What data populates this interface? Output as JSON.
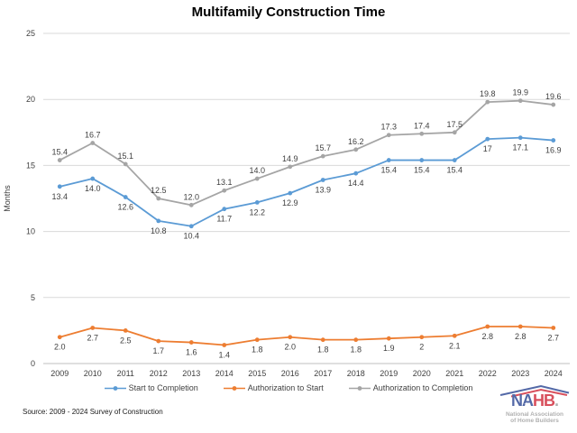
{
  "title": "Multifamily Construction Time",
  "chart_data": {
    "type": "line",
    "title": "Multifamily Construction Time",
    "xlabel": "",
    "ylabel": "Months",
    "ylim": [
      0,
      25
    ],
    "yticks": [
      0,
      5,
      10,
      15,
      20,
      25
    ],
    "grid": true,
    "legend_position": "bottom",
    "categories": [
      "2009",
      "2010",
      "2011",
      "2012",
      "2013",
      "2014",
      "2015",
      "2016",
      "2017",
      "2018",
      "2019",
      "2020",
      "2021",
      "2022",
      "2023",
      "2024"
    ],
    "series": [
      {
        "name": "Start to Completion",
        "color": "#5B9BD5",
        "label_position": "below",
        "values": [
          13.4,
          14.0,
          12.6,
          10.8,
          10.4,
          11.7,
          12.2,
          12.9,
          13.9,
          14.4,
          15.4,
          15.4,
          15.4,
          17,
          17.1,
          16.9
        ],
        "labels": [
          "13.4",
          "14.0",
          "12.6",
          "10.8",
          "10.4",
          "11.7",
          "12.2",
          "12.9",
          "13.9",
          "14.4",
          "15.4",
          "15.4",
          "15.4",
          "17",
          "17.1",
          "16.9"
        ]
      },
      {
        "name": "Authorization to Start",
        "color": "#ED7D31",
        "label_position": "below",
        "values": [
          2.0,
          2.7,
          2.5,
          1.7,
          1.6,
          1.4,
          1.8,
          2.0,
          1.8,
          1.8,
          1.9,
          2,
          2.1,
          2.8,
          2.8,
          2.7
        ],
        "labels": [
          "2.0",
          "2.7",
          "2.5",
          "1.7",
          "1.6",
          "1.4",
          "1.8",
          "2.0",
          "1.8",
          "1.8",
          "1.9",
          "2",
          "2.1",
          "2.8",
          "2.8",
          "2.7"
        ]
      },
      {
        "name": "Authorization to Completion",
        "color": "#A5A5A5",
        "label_position": "above",
        "values": [
          15.4,
          16.7,
          15.1,
          12.5,
          12.0,
          13.1,
          14.0,
          14.9,
          15.7,
          16.2,
          17.3,
          17.4,
          17.5,
          19.8,
          19.9,
          19.6
        ],
        "labels": [
          "15.4",
          "16.7",
          "15.1",
          "12.5",
          "12.0",
          "13.1",
          "14.0",
          "14.9",
          "15.7",
          "16.2",
          "17.3",
          "17.4",
          "17.5",
          "19.8",
          "19.9",
          "19.6"
        ]
      }
    ]
  },
  "colors": {
    "gridline": "#D9D9D9",
    "axis_line": "#BFBFBF",
    "tick_text": "#404040",
    "data_label_text": "#404040",
    "title_text": "#000000"
  },
  "source": "Source: 2009 - 2024 Survey of Construction",
  "logo": {
    "part_navy": "NA",
    "part_red": "HB",
    "dot": ".",
    "star": "★",
    "subline1": "National Association",
    "subline2": "of Home Builders",
    "navy": "#243F8F",
    "red": "#CE2030"
  }
}
